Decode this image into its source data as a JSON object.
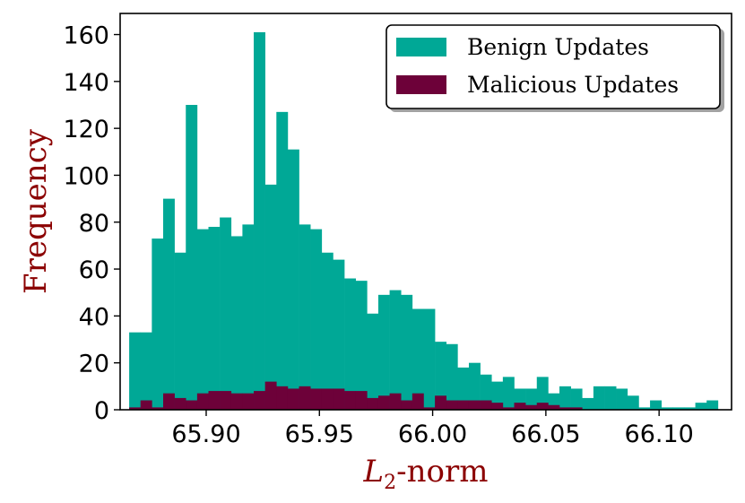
{
  "chart_data": {
    "type": "bar",
    "xlabel_main": "L",
    "xlabel_sub": "2",
    "xlabel_suffix": "-norm",
    "ylabel": "Frequency",
    "xlim": [
      65.862,
      66.132
    ],
    "ylim": [
      0,
      169
    ],
    "bin_width": 0.005,
    "x_ticks": [
      {
        "value": 65.9,
        "label": "65.90"
      },
      {
        "value": 65.95,
        "label": "65.95"
      },
      {
        "value": 66.0,
        "label": "66.00"
      },
      {
        "value": 66.05,
        "label": "66.05"
      },
      {
        "value": 66.1,
        "label": "66.10"
      }
    ],
    "y_ticks": [
      {
        "value": 0,
        "label": "0"
      },
      {
        "value": 20,
        "label": "20"
      },
      {
        "value": 40,
        "label": "40"
      },
      {
        "value": 60,
        "label": "60"
      },
      {
        "value": 80,
        "label": "80"
      },
      {
        "value": 100,
        "label": "100"
      },
      {
        "value": 120,
        "label": "120"
      },
      {
        "value": 140,
        "label": "140"
      },
      {
        "value": 160,
        "label": "160"
      }
    ],
    "legend_position": "top-right",
    "series": [
      {
        "name": "Benign Updates",
        "color": "#00a896",
        "x": [
          65.8685,
          65.8735,
          65.8785,
          65.8835,
          65.8885,
          65.8935,
          65.8985,
          65.9035,
          65.9085,
          65.9135,
          65.9185,
          65.9235,
          65.9285,
          65.9335,
          65.9385,
          65.9435,
          65.9485,
          65.9535,
          65.9585,
          65.9635,
          65.9685,
          65.9735,
          65.9785,
          65.9835,
          65.9885,
          65.9935,
          65.9985,
          66.0035,
          66.0085,
          66.0135,
          66.0185,
          66.0235,
          66.0285,
          66.0335,
          66.0385,
          66.0435,
          66.0485,
          66.0535,
          66.0585,
          66.0635,
          66.0685,
          66.0735,
          66.0785,
          66.0835,
          66.0885,
          66.0935,
          66.0985,
          66.1035,
          66.1085,
          66.1135,
          66.1185,
          66.1235
        ],
        "values": [
          33,
          33,
          73,
          90,
          67,
          130,
          77,
          78,
          82,
          74,
          79,
          161,
          96,
          127,
          111,
          79,
          77,
          67,
          64,
          56,
          55,
          41,
          49,
          51,
          49,
          43,
          43,
          29,
          28,
          18,
          20,
          15,
          12,
          14,
          9,
          9,
          14,
          7,
          10,
          9,
          5,
          10,
          10,
          9,
          6,
          1,
          4,
          1,
          1,
          1,
          3,
          4
        ]
      },
      {
        "name": "Malicious Updates",
        "color": "#6d0139",
        "x": [
          65.8685,
          65.8735,
          65.8785,
          65.8835,
          65.8885,
          65.8935,
          65.8985,
          65.9035,
          65.9085,
          65.9135,
          65.9185,
          65.9235,
          65.9285,
          65.9335,
          65.9385,
          65.9435,
          65.9485,
          65.9535,
          65.9585,
          65.9635,
          65.9685,
          65.9735,
          65.9785,
          65.9835,
          65.9885,
          65.9935,
          65.9985,
          66.0035,
          66.0085,
          66.0135,
          66.0185,
          66.0235,
          66.0285,
          66.0335,
          66.0385,
          66.0435,
          66.0485,
          66.0535,
          66.0585,
          66.0635,
          66.0685,
          66.0735,
          66.0785,
          66.0835,
          66.0885,
          66.0935,
          66.0985,
          66.1035,
          66.1085,
          66.1135,
          66.1185,
          66.1235
        ],
        "values": [
          1,
          4,
          1,
          7,
          5,
          4,
          7,
          8,
          8,
          7,
          7,
          8,
          12,
          10,
          9,
          10,
          9,
          9,
          9,
          8,
          8,
          5,
          6,
          7,
          4,
          7,
          1,
          6,
          4,
          4,
          4,
          4,
          3,
          1,
          3,
          2,
          3,
          2,
          1,
          1,
          0,
          0,
          0,
          0,
          0,
          0,
          0,
          0,
          0,
          0,
          0,
          0
        ]
      }
    ]
  }
}
